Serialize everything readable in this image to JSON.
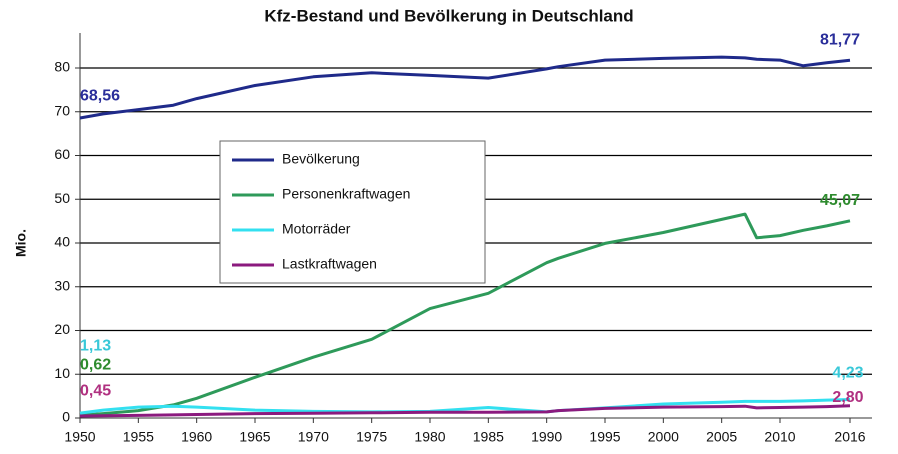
{
  "chart_data": {
    "type": "line",
    "title": "Kfz-Bestand und Bevölkerung in Deutschland",
    "y_label": "Mio.",
    "x": [
      1950,
      1952,
      1955,
      1958,
      1960,
      1965,
      1970,
      1975,
      1980,
      1985,
      1990,
      1991,
      1995,
      2000,
      2005,
      2007,
      2008,
      2010,
      2012,
      2014,
      2016
    ],
    "series": [
      {
        "name": "Bevölkerung",
        "color": "#1f2a8a",
        "values": [
          68.56,
          69.5,
          70.5,
          71.5,
          73,
          76,
          78,
          78.9,
          78.3,
          77.7,
          79.8,
          80.3,
          81.8,
          82.2,
          82.5,
          82.3,
          82.0,
          81.8,
          80.5,
          81.2,
          81.77
        ],
        "value_labels": [
          "68,56",
          null,
          null,
          null,
          null,
          null,
          null,
          null,
          null,
          null,
          null,
          null,
          null,
          null,
          null,
          null,
          null,
          null,
          null,
          null,
          "81,77"
        ]
      },
      {
        "name": "Personenkraftwagen",
        "color": "#2e9a5a",
        "values": [
          0.62,
          1.0,
          1.7,
          3.0,
          4.5,
          9.3,
          13.9,
          18.0,
          25,
          28.5,
          35.5,
          36.5,
          39.9,
          42.4,
          45.4,
          46.6,
          41.2,
          41.7,
          42.9,
          43.9,
          45.07
        ],
        "value_labels": [
          "0,62",
          null,
          null,
          null,
          null,
          null,
          null,
          null,
          null,
          null,
          null,
          null,
          null,
          null,
          null,
          null,
          null,
          null,
          null,
          null,
          "45,07"
        ]
      },
      {
        "name": "Motorräder",
        "color": "#33e0f0",
        "values": [
          1.13,
          1.8,
          2.5,
          2.7,
          2.5,
          1.8,
          1.5,
          1.4,
          1.5,
          2.4,
          1.4,
          1.7,
          2.3,
          3.2,
          3.6,
          3.8,
          3.8,
          3.8,
          3.9,
          4.1,
          4.23
        ],
        "value_labels": [
          "1,13",
          null,
          null,
          null,
          null,
          null,
          null,
          null,
          null,
          null,
          null,
          null,
          null,
          null,
          null,
          null,
          null,
          null,
          null,
          null,
          "4,23"
        ]
      },
      {
        "name": "Lastkraftwagen",
        "color": "#8b1a7e",
        "values": [
          0.45,
          0.5,
          0.6,
          0.7,
          0.8,
          1.0,
          1.1,
          1.2,
          1.3,
          1.3,
          1.4,
          1.7,
          2.2,
          2.5,
          2.6,
          2.7,
          2.3,
          2.4,
          2.5,
          2.6,
          2.8
        ],
        "value_labels": [
          "0,45",
          null,
          null,
          null,
          null,
          null,
          null,
          null,
          null,
          null,
          null,
          null,
          null,
          null,
          null,
          null,
          null,
          null,
          null,
          null,
          "2,80"
        ]
      }
    ],
    "xlim": [
      1950,
      2016
    ],
    "xticks": [
      1950,
      1955,
      1960,
      1965,
      1970,
      1975,
      1980,
      1985,
      1990,
      1995,
      2000,
      2005,
      2010,
      2016
    ],
    "ylim": [
      0,
      88
    ],
    "yticks": [
      0,
      10,
      20,
      30,
      40,
      50,
      60,
      70,
      80
    ],
    "grid": true
  }
}
